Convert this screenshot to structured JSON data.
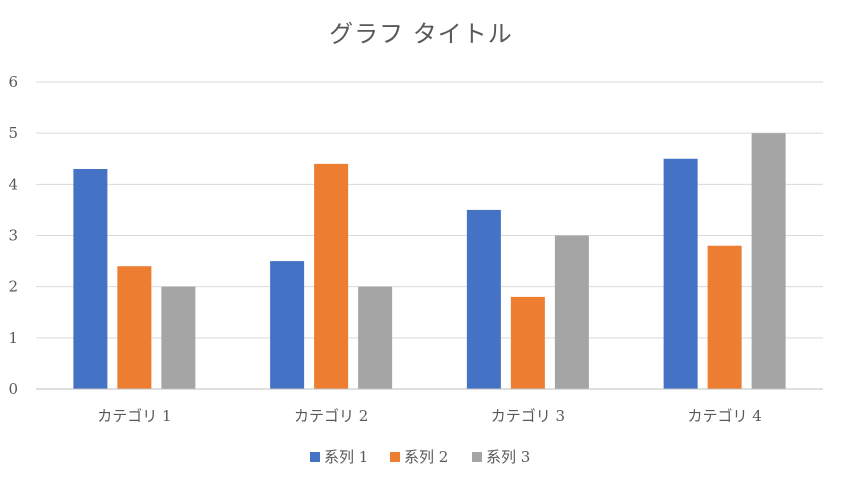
{
  "chart_data": {
    "type": "bar",
    "title": "グラフ タイトル",
    "categories": [
      "カテゴリ 1",
      "カテゴリ 2",
      "カテゴリ 3",
      "カテゴリ 4"
    ],
    "series": [
      {
        "name": "系列 1",
        "color": "#4472c4",
        "values": [
          4.3,
          2.5,
          3.5,
          4.5
        ]
      },
      {
        "name": "系列 2",
        "color": "#ed7d31",
        "values": [
          2.4,
          4.4,
          1.8,
          2.8
        ]
      },
      {
        "name": "系列 3",
        "color": "#a5a5a5",
        "values": [
          2,
          2,
          3,
          5
        ]
      }
    ],
    "ylim": [
      0,
      6
    ],
    "yticks": [
      0,
      1,
      2,
      3,
      4,
      5,
      6
    ],
    "grid": true,
    "legend": "bottom"
  }
}
